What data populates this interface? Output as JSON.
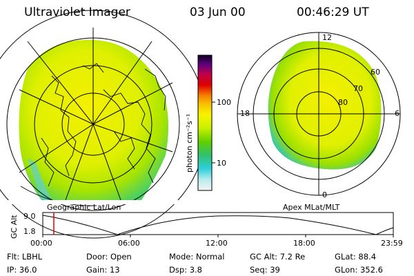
{
  "header": {
    "instrument": "Ultraviolet Imager",
    "date": "03 Jun 00",
    "time": "00:46:29 UT"
  },
  "colorbar": {
    "unit_label": "photon cm⁻²s⁻¹",
    "ticks": [
      "100",
      "10"
    ]
  },
  "left_panel": {
    "label": "Geographic Lat/Lon"
  },
  "right_panel": {
    "label": "Apex MLat/MLT",
    "mlt_labels": {
      "top": "12",
      "left": "18",
      "right": "6",
      "bottom": "0"
    },
    "lat_labels": [
      "60",
      "70",
      "80"
    ]
  },
  "timeline": {
    "ylabel": "GC Alt",
    "yticks": [
      "9.0",
      "1.8"
    ],
    "xticks": [
      "00:00",
      "06:00",
      "12:00",
      "18:00",
      "23:59"
    ]
  },
  "info": {
    "row1": [
      {
        "key": "Flt:",
        "value": "LBHL"
      },
      {
        "key": "Door:",
        "value": "Open"
      },
      {
        "key": "Mode:",
        "value": "Normal"
      },
      {
        "key": "GC Alt:",
        "value": "7.2 Re"
      },
      {
        "key": "GLat:",
        "value": "88.4"
      }
    ],
    "row2": [
      {
        "key": "IP:",
        "value": "36.0"
      },
      {
        "key": "Gain:",
        "value": "13"
      },
      {
        "key": "Dsp:",
        "value": "3.8"
      },
      {
        "key": "Seq:",
        "value": "39"
      },
      {
        "key": "GLon:",
        "value": "352.6"
      }
    ]
  }
}
